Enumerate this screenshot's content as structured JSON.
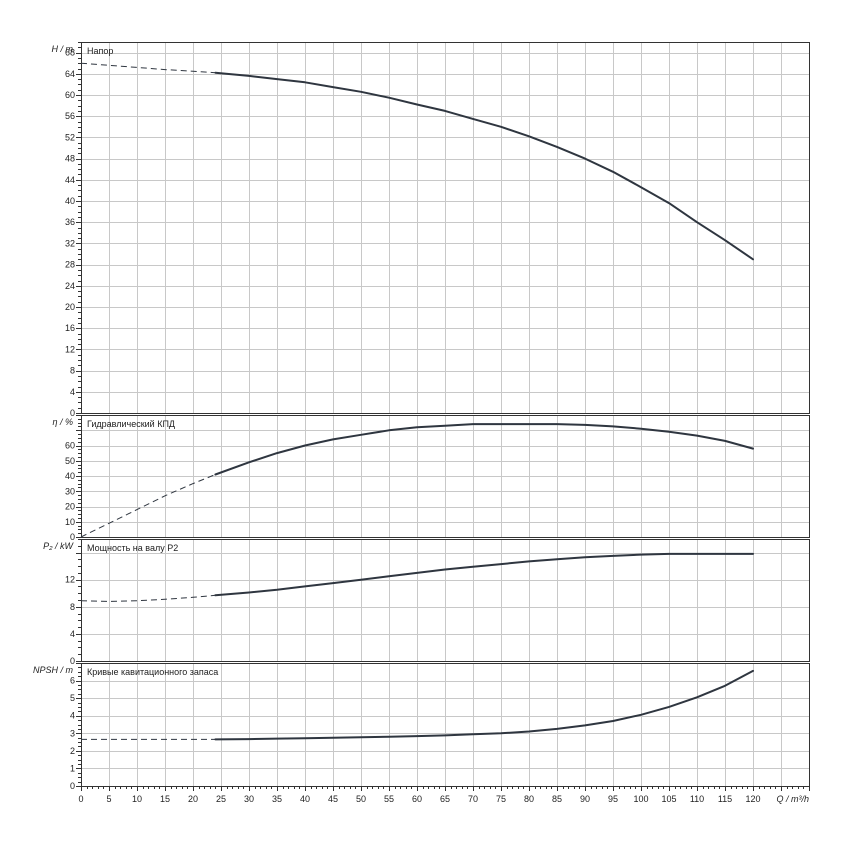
{
  "chart_data": {
    "type": "line",
    "x_axis": {
      "label": "Q / m³/h",
      "range": [
        0,
        130
      ],
      "ticks": [
        0,
        5,
        10,
        15,
        20,
        25,
        30,
        35,
        40,
        45,
        50,
        55,
        60,
        65,
        70,
        75,
        80,
        85,
        90,
        95,
        100,
        105,
        110,
        115,
        120
      ]
    },
    "grid": true,
    "panels": [
      {
        "key": "head",
        "title": "Напор",
        "ylabel": "H / m",
        "ylim": [
          0,
          70
        ],
        "yticks": [
          0,
          4,
          8,
          12,
          16,
          20,
          24,
          28,
          32,
          36,
          40,
          44,
          48,
          52,
          56,
          60,
          64,
          68
        ],
        "series": [
          {
            "style": "dashed",
            "x": [
              0,
              5,
              10,
              15,
              20,
              24
            ],
            "y": [
              66.0,
              65.6,
              65.2,
              64.8,
              64.5,
              64.2
            ]
          },
          {
            "style": "solid",
            "x": [
              24,
              30,
              35,
              40,
              45,
              50,
              55,
              60,
              65,
              70,
              75,
              80,
              85,
              90,
              95,
              100,
              105,
              110,
              115,
              120
            ],
            "y": [
              64.2,
              63.6,
              63.0,
              62.4,
              61.5,
              60.6,
              59.5,
              58.2,
              57.0,
              55.5,
              54.0,
              52.2,
              50.2,
              48.0,
              45.5,
              42.6,
              39.6,
              36.0,
              32.6,
              29.0
            ]
          }
        ]
      },
      {
        "key": "efficiency",
        "title": "Гидравлический КПД",
        "ylabel": "η / %",
        "ylim": [
          0,
          80
        ],
        "yticks": [
          0,
          10,
          20,
          30,
          40,
          50,
          60
        ],
        "series": [
          {
            "style": "dashed",
            "x": [
              0,
              5,
              10,
              15,
              20,
              24
            ],
            "y": [
              0,
              9,
              18,
              27,
              35,
              41
            ]
          },
          {
            "style": "solid",
            "x": [
              24,
              30,
              35,
              40,
              45,
              50,
              55,
              60,
              65,
              70,
              75,
              80,
              85,
              90,
              95,
              100,
              105,
              110,
              115,
              120
            ],
            "y": [
              41,
              49,
              55,
              60,
              64,
              67,
              70,
              72,
              73,
              74,
              74,
              74,
              74,
              73.5,
              72.5,
              71,
              69,
              66.5,
              63,
              58
            ]
          }
        ]
      },
      {
        "key": "power",
        "title": "Мощность на валу P2",
        "ylabel": "P₂ / kW",
        "ylim": [
          0,
          18
        ],
        "yticks": [
          0,
          4,
          8,
          12
        ],
        "series": [
          {
            "style": "dashed",
            "x": [
              0,
              5,
              10,
              15,
              20,
              24
            ],
            "y": [
              8.9,
              8.8,
              8.9,
              9.1,
              9.4,
              9.7
            ]
          },
          {
            "style": "solid",
            "x": [
              24,
              30,
              35,
              40,
              45,
              50,
              55,
              60,
              65,
              70,
              75,
              80,
              85,
              90,
              95,
              100,
              105,
              110,
              115,
              120
            ],
            "y": [
              9.7,
              10.1,
              10.5,
              11.0,
              11.5,
              12.0,
              12.5,
              13.0,
              13.5,
              13.9,
              14.3,
              14.7,
              15.0,
              15.3,
              15.5,
              15.7,
              15.8,
              15.8,
              15.8,
              15.8
            ]
          }
        ]
      },
      {
        "key": "npsh",
        "title": "Кривые кавитационного запаса",
        "ylabel": "NPSH / m",
        "ylim": [
          0,
          7
        ],
        "yticks": [
          0,
          1,
          2,
          3,
          4,
          5,
          6
        ],
        "series": [
          {
            "style": "dashed",
            "x": [
              0,
              5,
              10,
              15,
              20,
              24
            ],
            "y": [
              2.65,
              2.65,
              2.65,
              2.65,
              2.65,
              2.65
            ]
          },
          {
            "style": "solid",
            "x": [
              24,
              30,
              35,
              40,
              45,
              50,
              55,
              60,
              65,
              70,
              75,
              80,
              85,
              90,
              95,
              100,
              105,
              110,
              115,
              120
            ],
            "y": [
              2.65,
              2.67,
              2.7,
              2.72,
              2.75,
              2.78,
              2.8,
              2.84,
              2.88,
              2.94,
              3.0,
              3.1,
              3.25,
              3.45,
              3.7,
              4.05,
              4.5,
              5.05,
              5.7,
              6.55
            ]
          }
        ]
      }
    ]
  }
}
